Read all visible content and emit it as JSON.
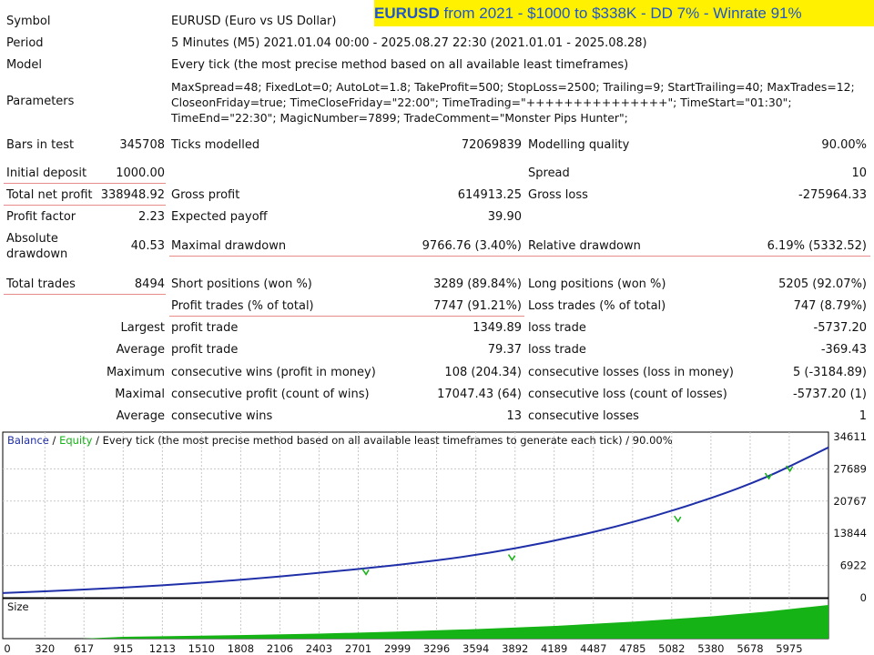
{
  "banner": {
    "symbol": "EURUSD",
    "rest": "from 2021 - $1000 to $338K - DD 7% - Winrate 91%"
  },
  "header": {
    "symbol_label": "Symbol",
    "symbol_value": "EURUSD (Euro vs US Dollar)",
    "period_label": "Period",
    "period_value": "5 Minutes (M5) 2021.01.04 00:00 - 2025.08.27 22:30 (2021.01.01 - 2025.08.28)",
    "model_label": "Model",
    "model_value": "Every tick (the most precise method based on all available least timeframes)",
    "parameters_label": "Parameters",
    "parameters_line1": "MaxSpread=48; FixedLot=0; AutoLot=1.8; TakeProfit=500; StopLoss=2500; Trailing=9; StartTrailing=40; MaxTrades=12;",
    "parameters_line2": "CloseonFriday=true; TimeCloseFriday=\"22:00\"; TimeTrading=\"+++++++++++++++\"; TimeStart=\"01:30\";",
    "parameters_line3": "TimeEnd=\"22:30\"; MagicNumber=7899; TradeComment=\"Monster Pips Hunter\";"
  },
  "stats": {
    "bars_label": "Bars in test",
    "bars_value": "345708",
    "ticks_label": "Ticks modelled",
    "ticks_value": "72069839",
    "quality_label": "Modelling quality",
    "quality_value": "90.00%",
    "deposit_label": "Initial deposit",
    "deposit_value": "1000.00",
    "spread_label": "Spread",
    "spread_value": "10",
    "net_label": "Total net profit",
    "net_value": "338948.92",
    "gross_profit_label": "Gross profit",
    "gross_profit_value": "614913.25",
    "gross_loss_label": "Gross loss",
    "gross_loss_value": "-275964.33",
    "pf_label": "Profit factor",
    "pf_value": "2.23",
    "ep_label": "Expected payoff",
    "ep_value": "39.90",
    "abs_dd_label1": "Absolute",
    "abs_dd_label2": "drawdown",
    "abs_dd_value": "40.53",
    "max_dd_label": "Maximal drawdown",
    "max_dd_value": "9766.76 (3.40%)",
    "rel_dd_label": "Relative drawdown",
    "rel_dd_value": "6.19% (5332.52)",
    "trades_label": "Total trades",
    "trades_value": "8494",
    "short_label": "Short positions (won %)",
    "short_value": "3289 (89.84%)",
    "long_label": "Long positions (won %)",
    "long_value": "5205 (92.07%)",
    "profit_trades_label": "Profit trades (% of total)",
    "profit_trades_value": "7747 (91.21%)",
    "loss_trades_label": "Loss trades (% of total)",
    "loss_trades_value": "747 (8.79%)",
    "largest_label": "Largest",
    "largest_profit_label": "profit trade",
    "largest_profit_value": "1349.89",
    "largest_loss_label": "loss trade",
    "largest_loss_value": "-5737.20",
    "average_label": "Average",
    "average_profit_label": "profit trade",
    "average_profit_value": "79.37",
    "average_loss_label": "loss trade",
    "average_loss_value": "-369.43",
    "maximum_label": "Maximum",
    "max_wins_label": "consecutive wins (profit in money)",
    "max_wins_value": "108 (204.34)",
    "max_losses_label": "consecutive losses (loss in money)",
    "max_losses_value": "5 (-3184.89)",
    "maximal_label": "Maximal",
    "maximal_profit_label": "consecutive profit (count of wins)",
    "maximal_profit_value": "17047.43 (64)",
    "maximal_loss_label": "consecutive loss (count of losses)",
    "maximal_loss_value": "-5737.20 (1)",
    "avg_cons_label": "Average",
    "avg_wins_label": "consecutive wins",
    "avg_wins_value": "13",
    "avg_losses_label": "consecutive losses",
    "avg_losses_value": "1"
  },
  "chart_data": {
    "type": "line",
    "legend_balance": "Balance",
    "legend_sep": " / ",
    "legend_equity": "Equity",
    "legend_rest": " / Every tick (the most precise method based on all available least timeframes to generate each tick) / 90.00%",
    "size_label": "Size",
    "y_ticks": [
      "34611",
      "27689",
      "20767",
      "13844",
      "6922",
      "0"
    ],
    "x_ticks": [
      "0",
      "320",
      "617",
      "915",
      "1213",
      "1510",
      "1808",
      "2106",
      "2403",
      "2701",
      "2999",
      "3296",
      "3594",
      "3892",
      "4189",
      "4487",
      "4785",
      "5082",
      "5380",
      "5678",
      "5975"
    ],
    "ylim": [
      0,
      34611
    ],
    "xlim": [
      0,
      6273
    ],
    "series": [
      {
        "name": "Balance",
        "color": "#1f2fa8",
        "x": [
          0,
          600,
          1200,
          1800,
          2400,
          3000,
          3600,
          4200,
          4800,
          5400,
          5800,
          6100,
          6273
        ],
        "y": [
          1000,
          1700,
          2600,
          3800,
          5300,
          7000,
          9100,
          12200,
          16200,
          21500,
          25800,
          29900,
          32300
        ]
      },
      {
        "name": "Equity",
        "color": "#16b316",
        "dips_x": [
          2760,
          3870,
          5130,
          5820,
          5980
        ],
        "dips_y": [
          5000,
          8100,
          16400,
          25600,
          27200
        ]
      }
    ],
    "size_series": {
      "color": "#16b316",
      "x": [
        0,
        600,
        915,
        1800,
        2400,
        3000,
        3600,
        4200,
        4800,
        5400,
        5800,
        6100,
        6273
      ],
      "y": [
        0,
        0,
        0.05,
        0.1,
        0.14,
        0.2,
        0.27,
        0.36,
        0.48,
        0.63,
        0.76,
        0.88,
        0.95
      ]
    },
    "colors": {
      "grid": "#c8c8c8",
      "axis": "#000000",
      "underline": "#e88b8b"
    }
  }
}
